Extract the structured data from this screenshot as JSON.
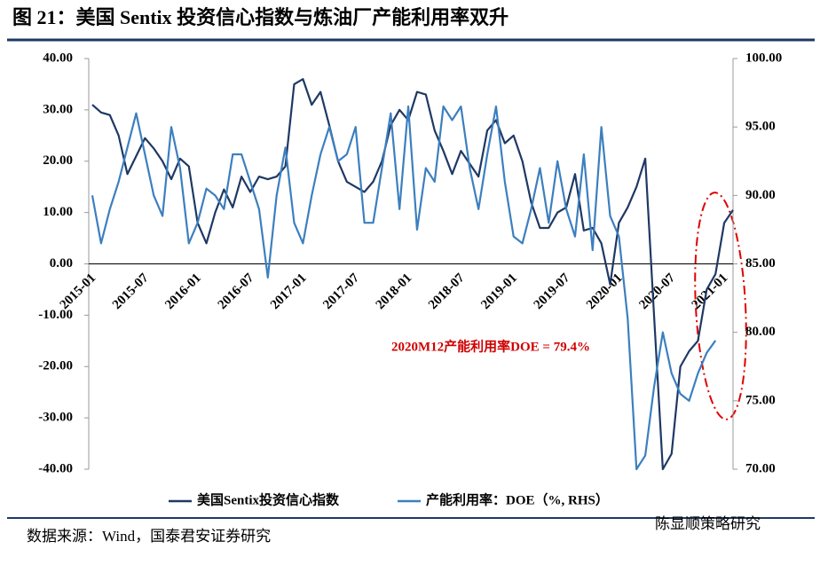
{
  "chart_data": {
    "type": "line",
    "title": "图 21：美国 Sentix 投资信心指数与炼油厂产能利用率双升",
    "categories": [
      "2015-01",
      null,
      null,
      null,
      null,
      null,
      "2015-07",
      null,
      null,
      null,
      null,
      null,
      "2016-01",
      null,
      null,
      null,
      null,
      null,
      "2016-07",
      null,
      null,
      null,
      null,
      null,
      "2017-01",
      null,
      null,
      null,
      null,
      null,
      "2017-07",
      null,
      null,
      null,
      null,
      null,
      "2018-01",
      null,
      null,
      null,
      null,
      null,
      "2018-07",
      null,
      null,
      null,
      null,
      null,
      "2019-01",
      null,
      null,
      null,
      null,
      null,
      "2019-07",
      null,
      null,
      null,
      null,
      null,
      "2020-01",
      null,
      null,
      null,
      null,
      null,
      "2020-07",
      null,
      null,
      null,
      null,
      null,
      "2021-01",
      null
    ],
    "series": [
      {
        "name": "美国Sentix投资信心指数",
        "color": "#1f3864",
        "values": [
          31,
          29.5,
          29,
          25,
          17.5,
          21,
          24.5,
          22.5,
          20,
          16.5,
          20.5,
          19,
          8,
          4,
          10,
          14.5,
          11,
          17,
          14,
          17,
          16.5,
          17,
          19,
          35,
          36,
          31,
          33.5,
          27,
          20,
          16,
          15,
          14,
          16,
          20,
          27,
          30,
          28,
          33.5,
          33,
          26,
          22,
          17.5,
          22,
          19.5,
          17,
          26,
          28,
          23.5,
          25,
          20,
          12,
          7,
          7,
          10,
          11,
          17.5,
          6.5,
          7,
          4,
          -4,
          8,
          11,
          15,
          20.5,
          -10,
          -40,
          -37,
          -20,
          -17,
          -15,
          -5,
          -2,
          8,
          10.5
        ]
      },
      {
        "name": "产能利用率：DOE（%, RHS）",
        "color": "#3c7fbf",
        "axis": "y2",
        "values": [
          90,
          86.5,
          89,
          91,
          93.5,
          96,
          93,
          90,
          88.5,
          95,
          92,
          86.5,
          88,
          90.5,
          90,
          89,
          93,
          93,
          91,
          89,
          84,
          90,
          93.5,
          88,
          86.5,
          90,
          93,
          95,
          92.5,
          93,
          95,
          88,
          88,
          92,
          96,
          89,
          96.5,
          87.5,
          92,
          91,
          96.5,
          95.5,
          96.5,
          92,
          89,
          93,
          96.5,
          91,
          87,
          86.5,
          89,
          92,
          88,
          92.5,
          89,
          87,
          93,
          86,
          95,
          88.5,
          87,
          81,
          70,
          71,
          76,
          80,
          77,
          75.5,
          75,
          77,
          78.5,
          79.4,
          null,
          null
        ]
      }
    ],
    "ylim": [
      -40,
      40
    ],
    "yticks": [
      {
        "value": -40,
        "label": "-40.00"
      },
      {
        "value": -30,
        "label": "-30.00"
      },
      {
        "value": -20,
        "label": "-20.00"
      },
      {
        "value": -10,
        "label": "-10.00"
      },
      {
        "value": 0,
        "label": "0.00"
      },
      {
        "value": 10,
        "label": "10.00"
      },
      {
        "value": 20,
        "label": "20.00"
      },
      {
        "value": 30,
        "label": "30.00"
      },
      {
        "value": 40,
        "label": "40.00"
      }
    ],
    "y2lim": [
      70,
      100
    ],
    "y2ticks": [
      {
        "value": 70,
        "label": "70.00"
      },
      {
        "value": 75,
        "label": "75.00"
      },
      {
        "value": 80,
        "label": "80.00"
      },
      {
        "value": 85,
        "label": "85.00"
      },
      {
        "value": 90,
        "label": "90.00"
      },
      {
        "value": 95,
        "label": "95.00"
      },
      {
        "value": 100,
        "label": "100.00"
      }
    ],
    "annotation": "2020M12产能利用率DOE = 79.4%",
    "source": "数据来源：Wind，国泰君安证券研究",
    "watermark": "陈显顺策略研究",
    "grid": false
  }
}
